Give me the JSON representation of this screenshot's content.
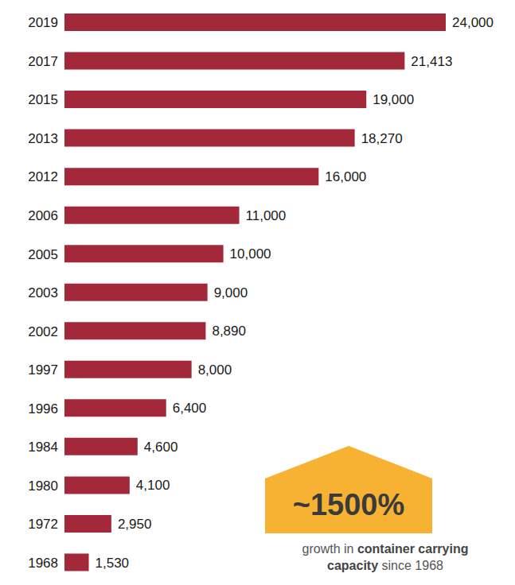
{
  "chart_data": {
    "type": "bar",
    "orientation": "horizontal",
    "categories": [
      "2019",
      "2017",
      "2015",
      "2013",
      "2012",
      "2006",
      "2005",
      "2003",
      "2002",
      "1997",
      "1996",
      "1984",
      "1980",
      "1972",
      "1968"
    ],
    "values": [
      24000,
      21413,
      19000,
      18270,
      16000,
      11000,
      10000,
      9000,
      8890,
      8000,
      6400,
      4600,
      4100,
      2950,
      1530
    ],
    "value_labels": [
      "24,000",
      "21,413",
      "19,000",
      "18,270",
      "16,000",
      "11,000",
      "10,000",
      "9,000",
      "8,890",
      "8,000",
      "6,400",
      "4,600",
      "4,100",
      "2,950",
      "1,530"
    ],
    "data_labels": true,
    "color": "#a3293a",
    "xlim": [
      0,
      24000
    ],
    "tick_labels": "y",
    "grid": false,
    "annotation": {
      "text": "~1500%",
      "caption": [
        "growth in",
        "container carrying capacity",
        "since 1968"
      ]
    }
  }
}
